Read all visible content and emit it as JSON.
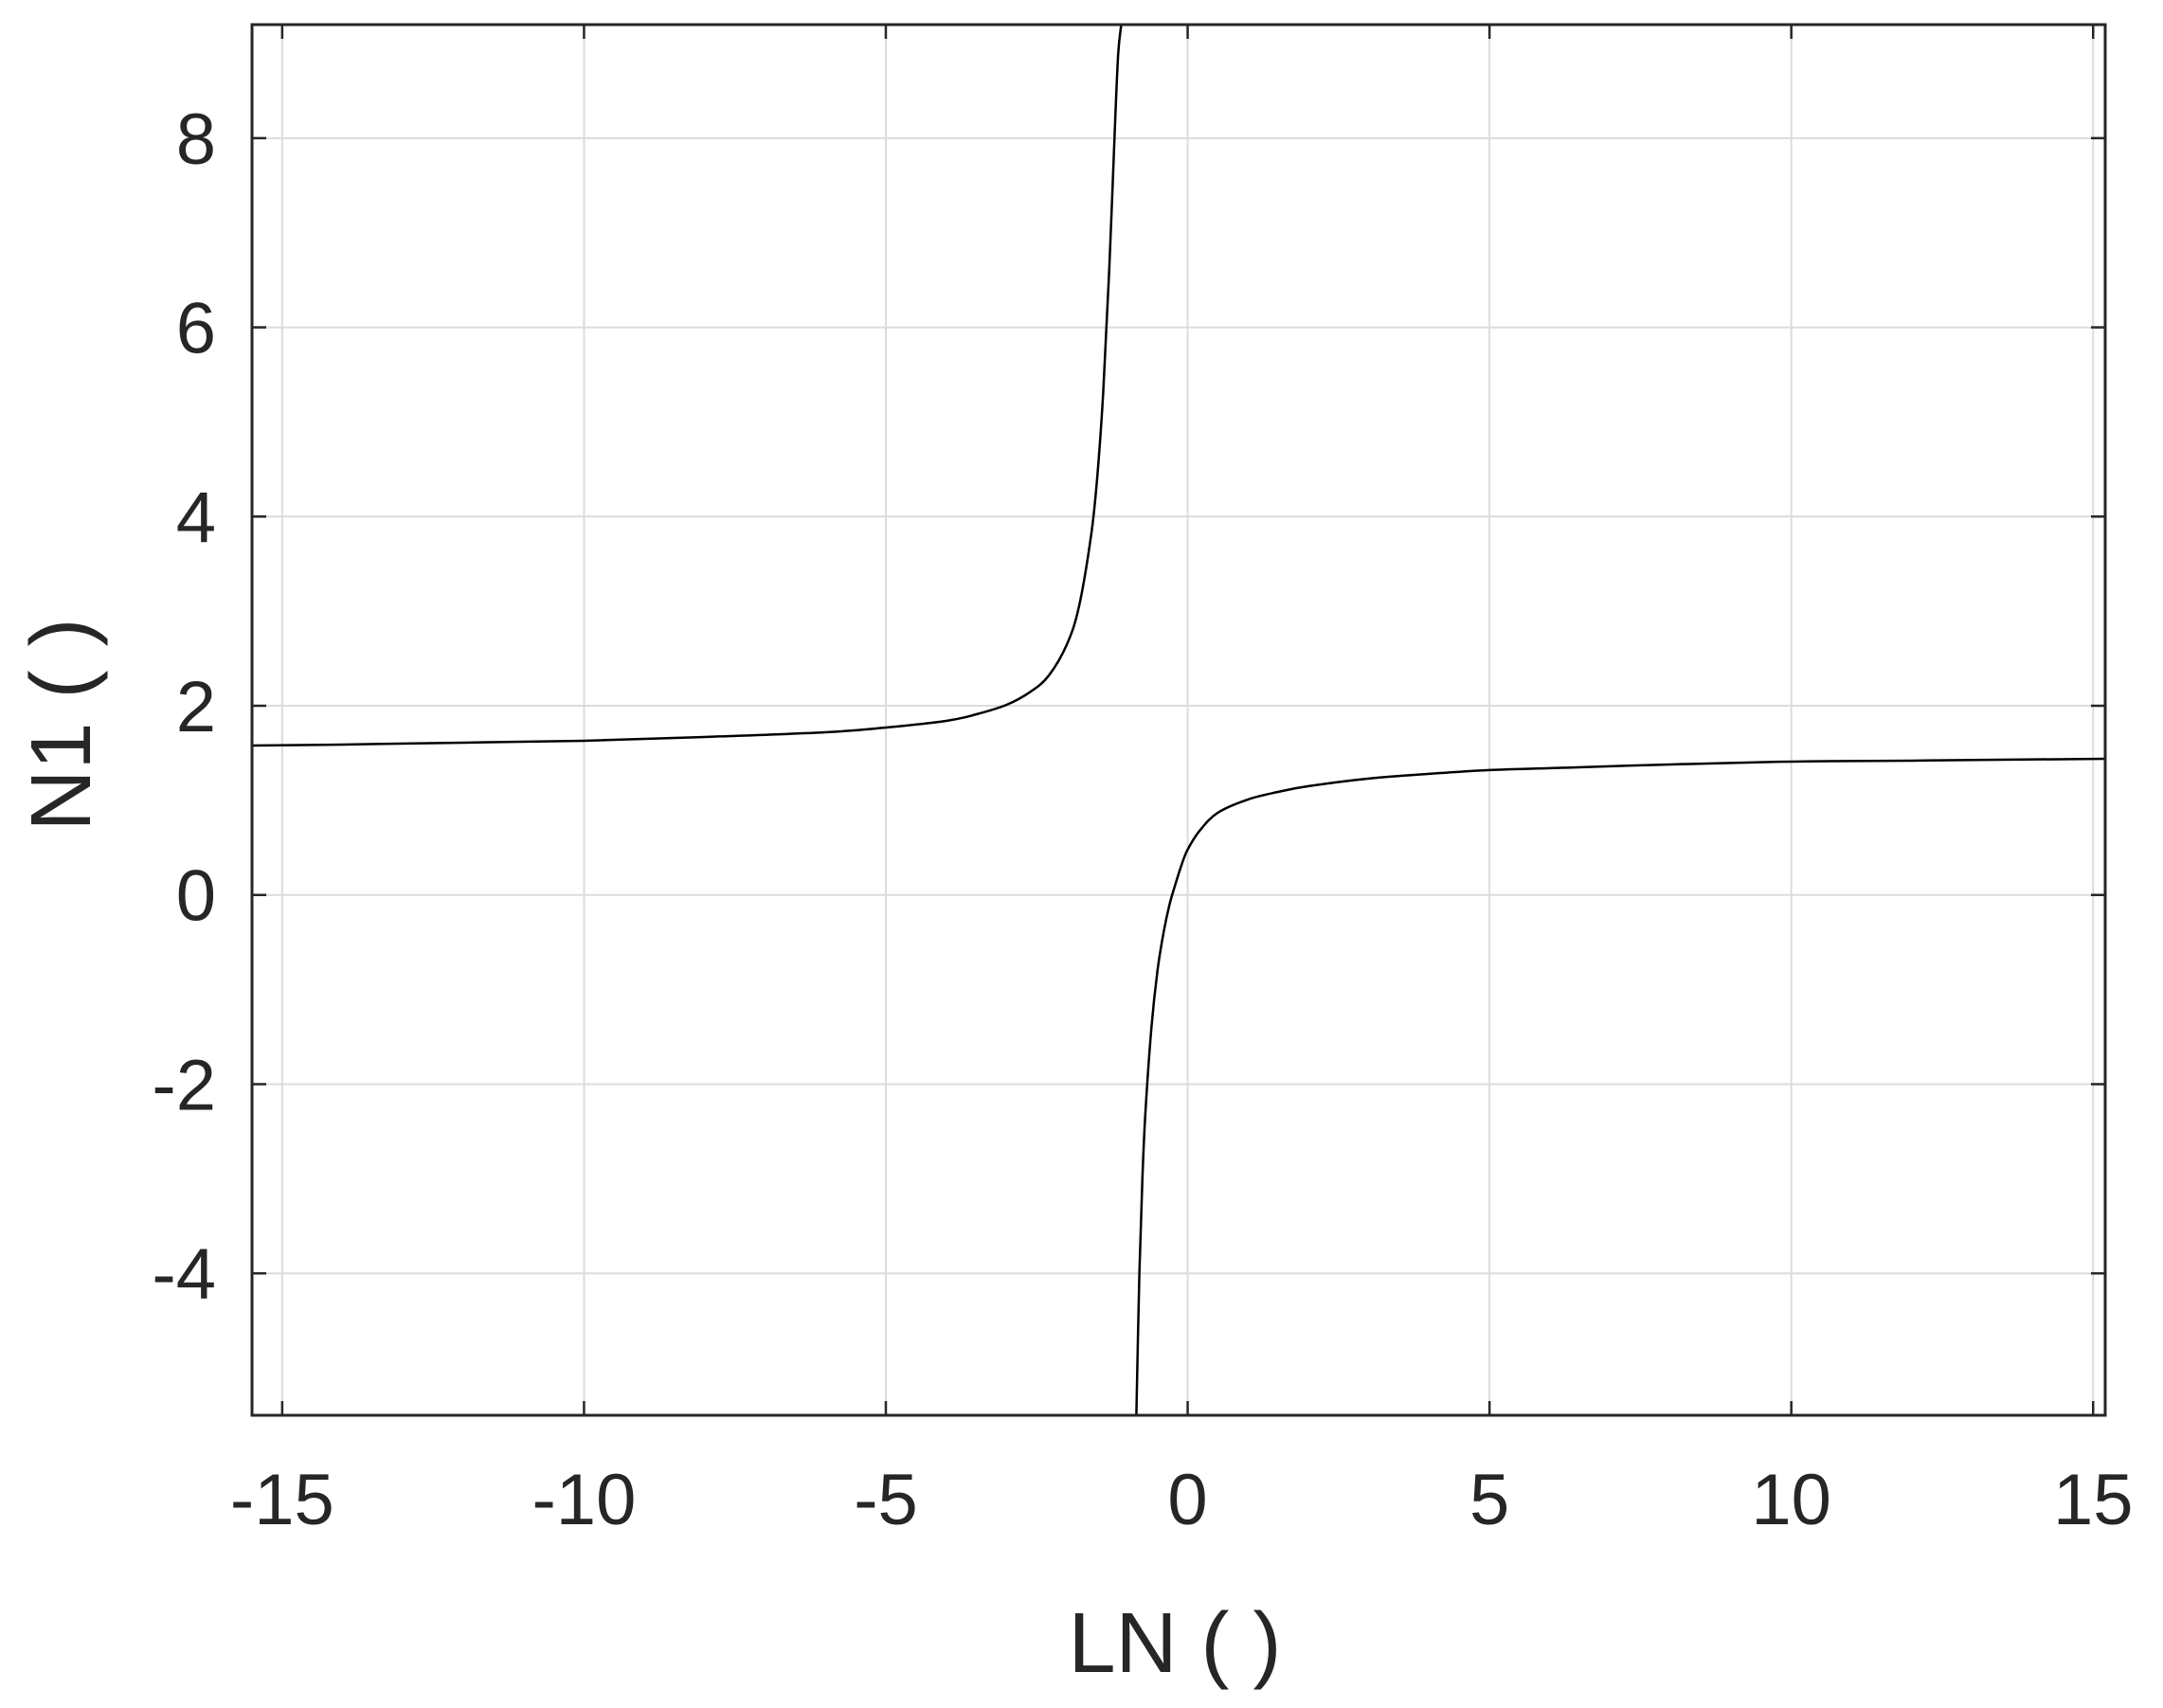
{
  "chart_data": {
    "type": "line",
    "title": "",
    "xlabel": "LN ( )",
    "ylabel": "N1 ( )",
    "xlim": [
      -15.5,
      15.2
    ],
    "ylim": [
      -5.5,
      9.2
    ],
    "xticks": [
      -15,
      -10,
      -5,
      0,
      5,
      10,
      15
    ],
    "xtick_labels": [
      "-15",
      "-10",
      "-5",
      "0",
      "5",
      "10",
      "15"
    ],
    "yticks": [
      -4,
      -2,
      0,
      2,
      4,
      6,
      8
    ],
    "ytick_labels": [
      "-4",
      "-2",
      "0",
      "2",
      "4",
      "6",
      "8"
    ],
    "grid": true,
    "legend": "none",
    "colors": {
      "line": "#000000",
      "axes": "#262626",
      "grid": "#dcdcdc",
      "background": "#ffffff"
    },
    "series": [
      {
        "x": [
          -15.5,
          -14,
          -12,
          -10,
          -8,
          -6,
          -5,
          -4,
          -3.5,
          -3,
          -2.6,
          -2.3,
          -2,
          -1.8,
          -1.6,
          -1.5,
          -1.4,
          -1.3,
          -1.2,
          -1.15,
          -1.1
        ],
        "y": [
          1.58,
          1.59,
          1.61,
          1.63,
          1.67,
          1.72,
          1.77,
          1.84,
          1.91,
          2.01,
          2.15,
          2.32,
          2.65,
          3.05,
          3.8,
          4.4,
          5.3,
          6.6,
          8.2,
          8.9,
          9.2
        ]
      },
      {
        "x": [
          -0.85,
          -0.8,
          -0.75,
          -0.7,
          -0.6,
          -0.5,
          -0.4,
          -0.3,
          -0.2,
          -0.1,
          0,
          0.2,
          0.5,
          1,
          1.5,
          2,
          3,
          4,
          5,
          6,
          8,
          10,
          12,
          15.2
        ],
        "y": [
          -5.5,
          -4.0,
          -3.0,
          -2.3,
          -1.4,
          -0.8,
          -0.4,
          -0.1,
          0.12,
          0.32,
          0.48,
          0.68,
          0.87,
          1.01,
          1.09,
          1.15,
          1.23,
          1.28,
          1.32,
          1.34,
          1.38,
          1.41,
          1.42,
          1.44
        ]
      }
    ]
  }
}
